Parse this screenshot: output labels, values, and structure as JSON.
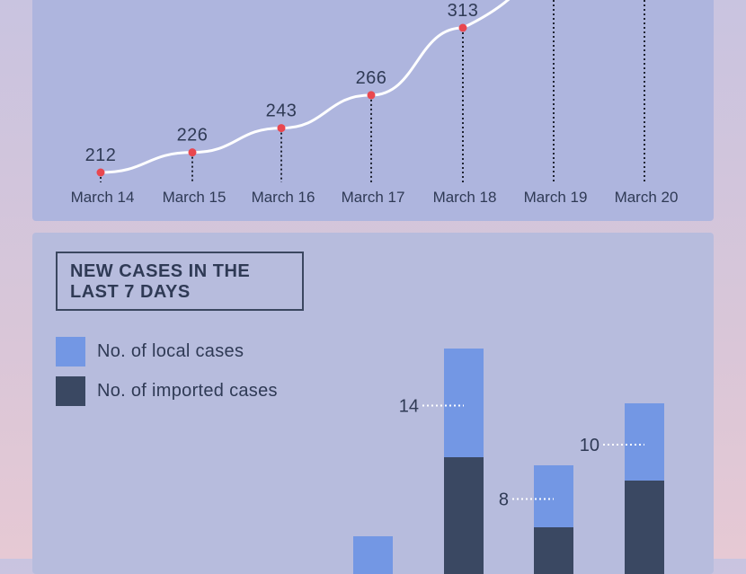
{
  "chart_data": [
    {
      "type": "line",
      "categories": [
        "March 14",
        "March 15",
        "March 16",
        "March 17",
        "March 18",
        "March 19",
        "March 20"
      ],
      "values": [
        212,
        226,
        243,
        266,
        313,
        null,
        null
      ],
      "colors": {
        "line": "#ffffff",
        "point": "#e9474f",
        "label": "#2f3a55",
        "tick": "#2f3a55"
      }
    },
    {
      "type": "bar",
      "title": "NEW CASES IN THE LAST 7 DAYS",
      "categories": [
        "",
        "",
        "",
        "",
        "",
        "",
        ""
      ],
      "series": [
        {
          "name": "No. of imported cases",
          "color": "#3a4862"
        },
        {
          "name": "No. of local cases",
          "color": "#7397e4"
        }
      ],
      "visible_bars": [
        {
          "index": 3,
          "local_label": null
        },
        {
          "index": 4,
          "local_label": "14"
        },
        {
          "index": 5,
          "local_label": "8"
        },
        {
          "index": 6,
          "local_label": "10"
        }
      ]
    }
  ]
}
